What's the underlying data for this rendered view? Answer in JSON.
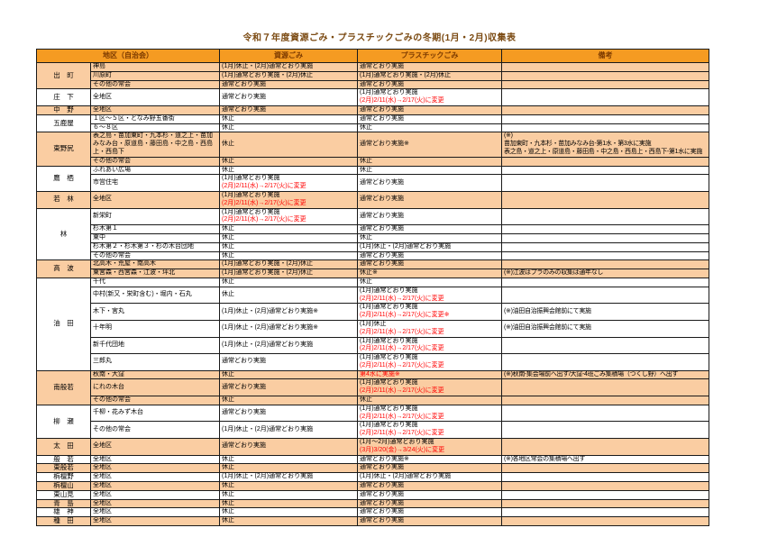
{
  "title": "令和７年度資源ごみ・プラスチックごみの冬期(1月・2月)収集表",
  "colors": {
    "header_bg": "#F59B22",
    "header_text": "#7C3A00",
    "row_peach": "#FACDA2",
    "red": "#FF0000",
    "title_color": "#7B4A12"
  },
  "headers": {
    "district": "地区（自治会）",
    "resource": "資源ごみ",
    "plastic": "プラスチックごみ",
    "remark": "備考"
  },
  "districts": [
    {
      "name": "出　町",
      "shaded": true,
      "rows": [
        {
          "area": "神島",
          "resource": [
            "(1月)休止・(2月)通常どおり実施"
          ],
          "plastic": [
            "通常どおり実施"
          ],
          "remark": []
        },
        {
          "area": "川原町",
          "resource": [
            "(1月)通常どおり実施・(2月)休止"
          ],
          "plastic": [
            "(1月)通常どおり実施・(2月)休止"
          ],
          "remark": []
        },
        {
          "area": "その他の常会",
          "resource": [
            "通常どおり実施"
          ],
          "plastic": [
            "通常どおり実施"
          ],
          "remark": []
        }
      ]
    },
    {
      "name": "庄　下",
      "shaded": false,
      "rows": [
        {
          "area": "全地区",
          "resource": [
            "通常どおり実施"
          ],
          "plastic": [
            "(1月)通常どおり実施",
            {
              "t": "(2月)2/11(水)→2/17(火)に変更",
              "c": "red"
            }
          ],
          "remark": []
        }
      ]
    },
    {
      "name": "中　野",
      "shaded": true,
      "rows": [
        {
          "area": "全地区",
          "resource": [
            "通常どおり実施"
          ],
          "plastic": [
            "通常どおり実施"
          ],
          "remark": []
        }
      ]
    },
    {
      "name": "五鹿屋",
      "shaded": false,
      "rows": [
        {
          "area": "１区～５区・となみ野五番街",
          "resource": [
            "休止"
          ],
          "plastic": [
            "通常どおり実施"
          ],
          "remark": []
        },
        {
          "area": "６～８区",
          "resource": [
            "休止"
          ],
          "plastic": [
            "休止"
          ],
          "remark": []
        }
      ]
    },
    {
      "name": "東野尻",
      "shaded": true,
      "rows": [
        {
          "area": "表之島・苗加東町・九本杉・道之上・苗加みなみ台・原道島・藤田島・中之島・西島上・西島下",
          "area_wrap": true,
          "resource": [
            "休止"
          ],
          "plastic": [
            "通常どおり実施※"
          ],
          "remark": [
            "(※)",
            "苗加東町・九本杉・苗加みなみ台-第1水・第3水に実施",
            "表之島・道之上・原道島・藤田島・中之島・西島上・西島下-第1水に実施"
          ]
        },
        {
          "area": "その他の常会",
          "resource": [
            "休止"
          ],
          "plastic": [
            "休止"
          ],
          "remark": []
        }
      ]
    },
    {
      "name": "鷹　栖",
      "shaded": false,
      "rows": [
        {
          "area": "ふれあい広場",
          "resource": [
            "休止"
          ],
          "plastic": [
            "休止"
          ],
          "remark": []
        },
        {
          "area": "市営住宅",
          "resource": [
            "(1月)通常どおり実施",
            {
              "t": "(2月)2/11(水)→2/17(火)に変更",
              "c": "red"
            }
          ],
          "plastic": [
            "通常どおり実施"
          ],
          "remark": []
        }
      ]
    },
    {
      "name": "若　林",
      "shaded": true,
      "rows": [
        {
          "area": "全地区",
          "resource": [
            "(1月)通常どおり実施",
            {
              "t": "(2月)2/11(水)→2/17(火)に変更",
              "c": "red"
            }
          ],
          "plastic": [
            "通常どおり実施"
          ],
          "remark": []
        }
      ]
    },
    {
      "name": "林",
      "shaded": false,
      "rows": [
        {
          "area": "新栄町",
          "resource": [
            "(1月)通常どおり実施",
            {
              "t": "(2月)2/11(水)→2/17(火)に変更",
              "c": "red"
            }
          ],
          "plastic": [
            "通常どおり実施"
          ],
          "remark": []
        },
        {
          "area": "杉木第１",
          "resource": [
            "休止"
          ],
          "plastic": [
            "通常どおり実施"
          ],
          "remark": []
        },
        {
          "area": "東中",
          "resource": [
            "休止"
          ],
          "plastic": [
            "休止"
          ],
          "remark": []
        },
        {
          "area": "杉木第２・杉木第３・杉の木台団地",
          "resource": [
            "休止"
          ],
          "plastic": [
            "(1月)休止・(2月)通常どおり実施"
          ],
          "remark": []
        },
        {
          "area": "その他の常会",
          "resource": [
            "休止"
          ],
          "plastic": [
            "通常どおり実施"
          ],
          "remark": []
        }
      ]
    },
    {
      "name": "高　波",
      "shaded": true,
      "rows": [
        {
          "area": "北高木・荒屋・南高木",
          "resource": [
            "(1月)通常どおり実施・(2月)休止"
          ],
          "plastic": [
            "通常どおり実施"
          ],
          "remark": []
        },
        {
          "area": "東宮森・西宮森・江波・坪北",
          "resource": [
            "(1月)通常どおり実施・(2月)休止"
          ],
          "plastic": [
            "休止※"
          ],
          "remark": [
            "(※)江波はプラのみの収集は通年なし"
          ]
        }
      ]
    },
    {
      "name": "油　田",
      "shaded": false,
      "rows": [
        {
          "area": "千代",
          "resource": [
            "休止"
          ],
          "plastic": [
            "休止"
          ],
          "remark": []
        },
        {
          "area": "中村(新又・栄町含む)・堀内・石丸",
          "resource": [
            "休止"
          ],
          "plastic": [
            "(1月)通常どおり実施",
            {
              "t": "(2月)2/11(水)→2/17(火)に変更",
              "c": "red"
            }
          ],
          "remark": []
        },
        {
          "area": "木下・宮丸",
          "resource": [
            "(1月)休止・(2月)通常どおり実施※"
          ],
          "plastic": [
            "(1月)通常どおり実施",
            {
              "t": "(2月)2/11(水)→2/17(火)に変更※",
              "c": "red"
            }
          ],
          "remark": [
            "(※)油田自治振興会館前にて実施"
          ]
        },
        {
          "area": "十年明",
          "resource": [
            "(1月)休止・(2月)通常どおり実施※"
          ],
          "plastic": [
            "(1月)休止",
            {
              "t": "(2月)2/11(水)→2/17(火)に変更",
              "c": "red"
            }
          ],
          "remark": [
            "(※)油田自治振興会館前にて実施"
          ]
        },
        {
          "area": "新千代団地",
          "resource": [
            "(1月)休止・(2月)通常どおり実施"
          ],
          "plastic": [
            "(1月)通常どおり実施",
            {
              "t": "(2月)2/11(水)→2/17(火)に変更",
              "c": "red"
            }
          ],
          "remark": []
        },
        {
          "area": "三郎丸",
          "resource": [
            "通常どおり実施"
          ],
          "plastic": [
            "(1月)通常どおり実施",
            {
              "t": "(2月)2/11(水)→2/17(火)に変更",
              "c": "red"
            }
          ],
          "remark": []
        }
      ]
    },
    {
      "name": "南般若",
      "shaded": true,
      "rows": [
        {
          "area": "秋南・大窪",
          "resource": [
            "休止"
          ],
          "plastic": [
            {
              "t": "第4水に実施※",
              "c": "red"
            }
          ],
          "remark": [
            "(※)秋南-集会場前へ出す/大窪-4班ごみ集積場（つくし野）へ出す"
          ]
        },
        {
          "area": "にれの木台",
          "resource": [
            "通常どおり実施"
          ],
          "plastic": [
            "(1月)通常どおり実施",
            {
              "t": "(2月)2/11(水)→2/17(火)に変更",
              "c": "red"
            }
          ],
          "remark": []
        },
        {
          "area": "その他の常会",
          "resource": [
            "休止"
          ],
          "plastic": [
            "休止"
          ],
          "remark": []
        }
      ]
    },
    {
      "name": "柳　瀬",
      "shaded": false,
      "rows": [
        {
          "area": "千柳・花みず木台",
          "resource": [
            "通常どおり実施"
          ],
          "plastic": [
            "(1月)通常どおり実施",
            {
              "t": "(2月)2/11(水)→2/17(火)に変更",
              "c": "red"
            }
          ],
          "remark": []
        },
        {
          "area": "その他の常会",
          "resource": [
            "(1月)休止・(2月)通常どおり実施"
          ],
          "plastic": [
            "(1月)通常どおり実施",
            {
              "t": "(2月)2/11(水)→2/17(火)に変更",
              "c": "red"
            }
          ],
          "remark": []
        }
      ]
    },
    {
      "name": "太　田",
      "shaded": true,
      "rows": [
        {
          "area": "全地区",
          "resource": [
            "通常どおり実施"
          ],
          "plastic": [
            "(1月～2月)通常どおり実施",
            {
              "t": "(3月)3/20(金)→3/24(火)に変更",
              "c": "red"
            }
          ],
          "remark": []
        }
      ]
    },
    {
      "name": "般　若",
      "shaded": false,
      "rows": [
        {
          "area": "全地区",
          "resource": [
            "休止"
          ],
          "plastic": [
            "通常どおり実施※"
          ],
          "remark": [
            "(※)各地区常会の集積場へ出す"
          ]
        }
      ]
    },
    {
      "name": "東般若",
      "shaded": true,
      "rows": [
        {
          "area": "全地区",
          "resource": [
            "休止"
          ],
          "plastic": [
            "通常どおり実施"
          ],
          "remark": []
        }
      ]
    },
    {
      "name": "栴檀野",
      "shaded": false,
      "rows": [
        {
          "area": "全地区",
          "resource": [
            "(1月)休止・(2月)通常どおり実施"
          ],
          "plastic": [
            "(1月)休止・(2月)通常どおり実施"
          ],
          "remark": []
        }
      ]
    },
    {
      "name": "栴檀山",
      "shaded": true,
      "rows": [
        {
          "area": "全地区",
          "resource": [
            "休止"
          ],
          "plastic": [
            "通常どおり実施"
          ],
          "remark": []
        }
      ]
    },
    {
      "name": "東山見",
      "shaded": false,
      "rows": [
        {
          "area": "全地区",
          "resource": [
            "休止"
          ],
          "plastic": [
            "通常どおり実施"
          ],
          "remark": []
        }
      ]
    },
    {
      "name": "青　島",
      "shaded": true,
      "rows": [
        {
          "area": "全地区",
          "resource": [
            "休止"
          ],
          "plastic": [
            "通常どおり実施"
          ],
          "remark": []
        }
      ]
    },
    {
      "name": "雄　神",
      "shaded": false,
      "rows": [
        {
          "area": "全地区",
          "resource": [
            "休止"
          ],
          "plastic": [
            "通常どおり実施"
          ],
          "remark": []
        }
      ]
    },
    {
      "name": "種　田",
      "shaded": true,
      "rows": [
        {
          "area": "全地区",
          "resource": [
            "休止"
          ],
          "plastic": [
            "通常どおり実施"
          ],
          "remark": []
        }
      ]
    }
  ]
}
